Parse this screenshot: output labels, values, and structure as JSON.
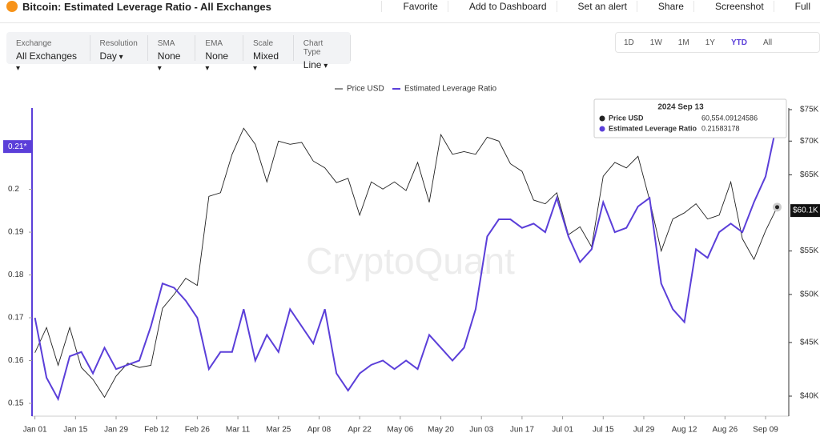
{
  "header": {
    "title": "Bitcoin: Estimated Leverage Ratio - All Exchanges",
    "actions": [
      "Favorite",
      "Add to Dashboard",
      "Set an alert",
      "Share",
      "Screenshot",
      "Full"
    ]
  },
  "filters": [
    {
      "label": "Exchange",
      "value": "All Exchanges"
    },
    {
      "label": "Resolution",
      "value": "Day"
    },
    {
      "label": "SMA",
      "value": "None"
    },
    {
      "label": "EMA",
      "value": "None"
    },
    {
      "label": "Scale",
      "value": "Mixed"
    },
    {
      "label": "Chart Type",
      "value": "Line"
    }
  ],
  "ranges": [
    "1D",
    "1W",
    "1M",
    "1Y",
    "YTD",
    "All"
  ],
  "active_range": 4,
  "chart_data": {
    "type": "line",
    "watermark": "CryptoQuant",
    "x": [
      0,
      4,
      8,
      12,
      16,
      20,
      24,
      28,
      32,
      36,
      40,
      44,
      48,
      52,
      56,
      60,
      64,
      68,
      72,
      76,
      80,
      84,
      88,
      92,
      96,
      100,
      104,
      108,
      112,
      116,
      120,
      124,
      128,
      132,
      136,
      140,
      144,
      148,
      152,
      156,
      160,
      164,
      168,
      172,
      176,
      180,
      184,
      188,
      192,
      196,
      200,
      204,
      208,
      212,
      216,
      220,
      224,
      228,
      232,
      236,
      240,
      244,
      248,
      252,
      256
    ],
    "xlim": [
      -1,
      260
    ],
    "xticks": [
      {
        "value": 0,
        "label": "Jan 01"
      },
      {
        "value": 14,
        "label": "Jan 15"
      },
      {
        "value": 28,
        "label": "Jan 29"
      },
      {
        "value": 42,
        "label": "Feb 12"
      },
      {
        "value": 56,
        "label": "Feb 26"
      },
      {
        "value": 70,
        "label": "Mar 11"
      },
      {
        "value": 84,
        "label": "Mar 25"
      },
      {
        "value": 98,
        "label": "Apr 08"
      },
      {
        "value": 112,
        "label": "Apr 22"
      },
      {
        "value": 126,
        "label": "May 06"
      },
      {
        "value": 140,
        "label": "May 20"
      },
      {
        "value": 154,
        "label": "Jun 03"
      },
      {
        "value": 168,
        "label": "Jun 17"
      },
      {
        "value": 182,
        "label": "Jul 01"
      },
      {
        "value": 196,
        "label": "Jul 15"
      },
      {
        "value": 210,
        "label": "Jul 29"
      },
      {
        "value": 224,
        "label": "Aug 12"
      },
      {
        "value": 238,
        "label": "Aug 26"
      },
      {
        "value": 252,
        "label": "Sep 09"
      }
    ],
    "ylim": [
      0.147,
      0.219
    ],
    "yticks": [
      0.15,
      0.16,
      0.17,
      0.18,
      0.19,
      0.2,
      0.21
    ],
    "y2lim": [
      38280,
      75260
    ],
    "y2_scale": "log",
    "y2ticks": [
      {
        "value": 40000,
        "label": "$40K"
      },
      {
        "value": 45000,
        "label": "$45K"
      },
      {
        "value": 50000,
        "label": "$50K"
      },
      {
        "value": 55000,
        "label": "$55K"
      },
      {
        "value": 65000,
        "label": "$65K"
      },
      {
        "value": 70000,
        "label": "$70K"
      },
      {
        "value": 75000,
        "label": "$75K"
      }
    ],
    "y_marker": {
      "value": 0.21,
      "label": "0.21*"
    },
    "y2_marker": {
      "value": 60100,
      "label": "$60.1K"
    },
    "series": [
      {
        "name": "Price USD",
        "color": "#222222",
        "axis": "y2",
        "values": [
          44000,
          46500,
          42800,
          46500,
          42600,
          41500,
          39900,
          41800,
          43000,
          42600,
          42800,
          48500,
          50000,
          51800,
          51000,
          62000,
          62500,
          68000,
          72000,
          69500,
          64000,
          70000,
          69500,
          69800,
          67000,
          66000,
          63900,
          64500,
          59500,
          64000,
          63000,
          64000,
          62800,
          66800,
          61200,
          71000,
          68000,
          68400,
          68000,
          70600,
          70000,
          66600,
          65500,
          61500,
          61000,
          62500,
          57000,
          58000,
          55500,
          64800,
          66800,
          66000,
          67700,
          61500,
          55000,
          59000,
          59800,
          61000,
          59000,
          59500,
          64000,
          56500,
          54000,
          57500,
          60554
        ]
      },
      {
        "name": "Estimated Leverage Ratio",
        "color": "#5b3fd9",
        "values": [
          0.17,
          0.156,
          0.151,
          0.161,
          0.162,
          0.157,
          0.163,
          0.158,
          0.159,
          0.16,
          0.168,
          0.178,
          0.177,
          0.174,
          0.17,
          0.158,
          0.162,
          0.162,
          0.172,
          0.16,
          0.166,
          0.162,
          0.172,
          0.168,
          0.164,
          0.172,
          0.157,
          0.153,
          0.157,
          0.159,
          0.16,
          0.158,
          0.16,
          0.158,
          0.166,
          0.163,
          0.16,
          0.163,
          0.172,
          0.189,
          0.193,
          0.193,
          0.191,
          0.192,
          0.19,
          0.198,
          0.189,
          0.183,
          0.186,
          0.197,
          0.19,
          0.191,
          0.196,
          0.198,
          0.178,
          0.172,
          0.169,
          0.186,
          0.184,
          0.19,
          0.192,
          0.19,
          0.197,
          0.203,
          0.2158
        ]
      }
    ],
    "tooltip": {
      "title": "2024 Sep 13",
      "values": [
        "60,554.09124586",
        "0.21583178"
      ]
    }
  }
}
